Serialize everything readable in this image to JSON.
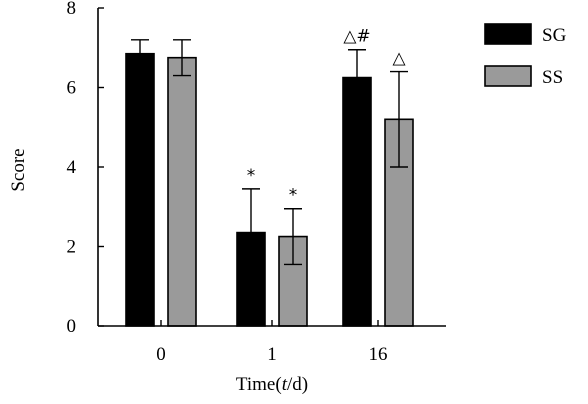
{
  "chart_data": {
    "type": "bar",
    "xlabel_prefix": "Time(",
    "xlabel_var": "t",
    "xlabel_suffix": "/d)",
    "ylabel": "Score",
    "categories": [
      "0",
      "1",
      "16"
    ],
    "ylim": [
      0,
      8
    ],
    "yticks": [
      "0",
      "2",
      "4",
      "6",
      "8"
    ],
    "series": [
      {
        "name": "SG",
        "color": "#000000",
        "values": [
          6.85,
          2.35,
          6.25
        ],
        "errors": [
          0.35,
          1.1,
          0.7
        ],
        "annotations": [
          "",
          "*",
          "△#"
        ]
      },
      {
        "name": "SS",
        "color": "#9a9a9a",
        "values": [
          6.75,
          2.25,
          5.2
        ],
        "errors": [
          0.45,
          0.7,
          1.2
        ],
        "annotations": [
          "",
          "*",
          "△"
        ]
      }
    ],
    "legend_position": "top-right",
    "grid": false
  }
}
